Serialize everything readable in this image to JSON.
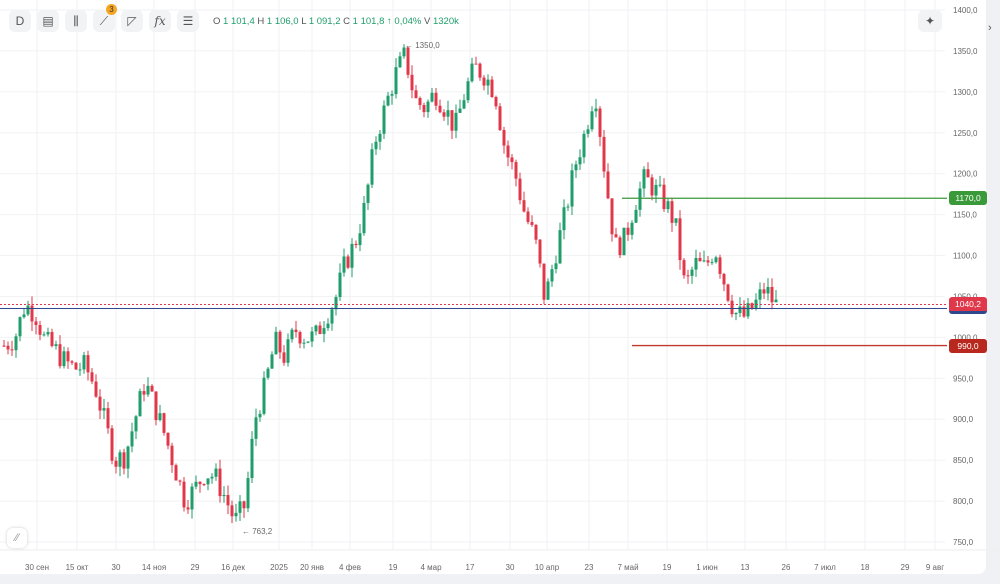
{
  "toolbar": {
    "interval": "D",
    "badge": "3",
    "fx": "fx"
  },
  "ohlc": {
    "o_label": "O",
    "o": "1 101,4",
    "h_label": "H",
    "h": "1 106,0",
    "l_label": "L",
    "l": "1 091,2",
    "c_label": "C",
    "c": "1 101,8",
    "change": "↑ 0,04%",
    "v_label": "V",
    "v": "1320k"
  },
  "colors": {
    "up": "#1f9e6b",
    "down": "#e0384a",
    "green_line": "#3a9a3a",
    "red_line": "#c0392b",
    "blue_line": "#2e4a8c"
  },
  "chart_data": {
    "type": "candlestick",
    "ylim": [
      750,
      1400
    ],
    "y_ticks": [
      "1400,0",
      "1350,0",
      "1300,0",
      "1250,0",
      "1200,0",
      "1150,0",
      "1100,0",
      "1050,0",
      "1000,0",
      "950,0",
      "900,0",
      "850,0",
      "800,0",
      "750,0"
    ],
    "x_ticks": [
      "30 сен",
      "15 окт",
      "30",
      "14 ноя",
      "29",
      "16 дек",
      "2025",
      "20 янв",
      "4 фев",
      "19",
      "4 мар",
      "17",
      "30",
      "10 апр",
      "23",
      "7 май",
      "19",
      "1 июн",
      "13",
      "26",
      "7 июл",
      "18",
      "29",
      "9 авг"
    ],
    "approx_close_path": [
      990,
      1000,
      1040,
      1030,
      995,
      985,
      970,
      962,
      965,
      940,
      895,
      850,
      855,
      900,
      945,
      915,
      880,
      840,
      800,
      815,
      835,
      830,
      805,
      775,
      795,
      900,
      940,
      995,
      975,
      1010,
      1000,
      1000,
      1025,
      1045,
      1090,
      1115,
      1160,
      1240,
      1280,
      1320,
      1345,
      1290,
      1280,
      1300,
      1280,
      1255,
      1300,
      1330,
      1320,
      1300,
      1230,
      1200,
      1150,
      1120,
      1045,
      1100,
      1150,
      1210,
      1250,
      1305,
      1200,
      1110,
      1120,
      1165,
      1195,
      1180,
      1165,
      1140,
      1060,
      1090,
      1085,
      1110,
      1065,
      1030,
      1025,
      1040,
      1060,
      1040
    ],
    "annotations": {
      "max": "1350,0",
      "min": "763,2"
    },
    "levels": {
      "green": {
        "value": 1170,
        "label": "1170,0"
      },
      "red": {
        "value": 990,
        "label": "990,0"
      },
      "current": {
        "value": 1040.2,
        "label": "1040,2"
      }
    }
  }
}
